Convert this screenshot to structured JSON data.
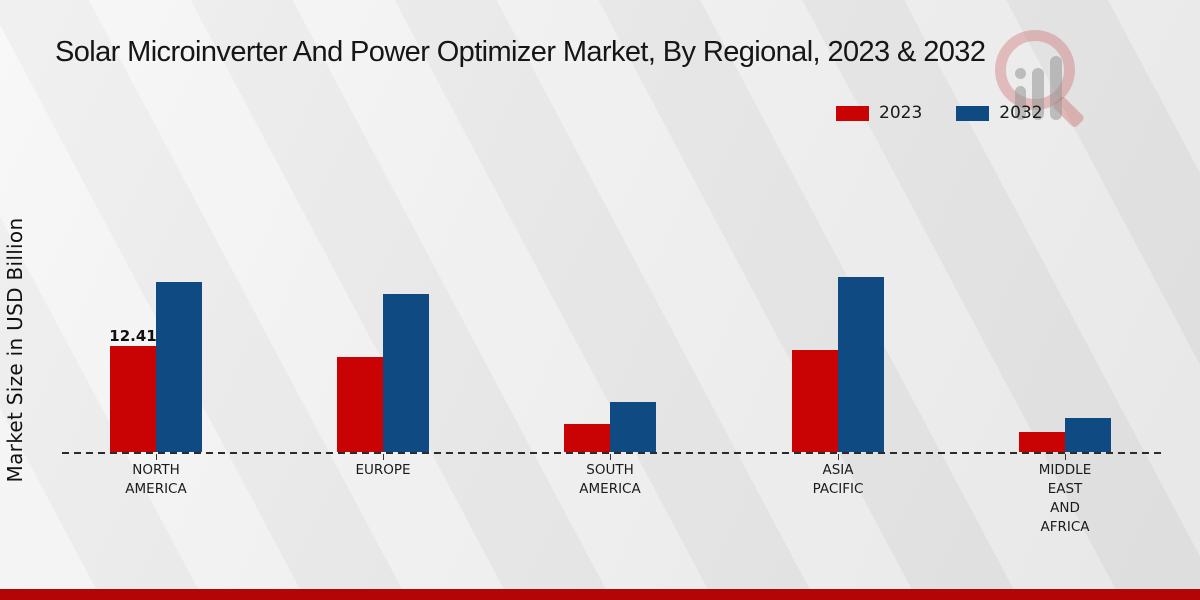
{
  "page": {
    "watermark_icon": "magnifier-bar-chart-logo",
    "footer_color": "#b30505"
  },
  "chart_data": {
    "type": "bar",
    "title": "Solar Microinverter And Power Optimizer Market, By Regional, 2023 & 2032",
    "xlabel": "",
    "ylabel": "Market Size in USD Billion",
    "categories": [
      "NORTH AMERICA",
      "EUROPE",
      "SOUTH AMERICA",
      "ASIA PACIFIC",
      "MIDDLE EAST AND AFRICA"
    ],
    "category_lines": [
      [
        "NORTH",
        "AMERICA"
      ],
      [
        "EUROPE"
      ],
      [
        "SOUTH",
        "AMERICA"
      ],
      [
        "ASIA",
        "PACIFIC"
      ],
      [
        "MIDDLE",
        "EAST",
        "AND",
        "AFRICA"
      ]
    ],
    "series": [
      {
        "name": "2023",
        "color": "#c90303",
        "values": [
          12.41,
          11.1,
          3.3,
          11.9,
          2.3
        ]
      },
      {
        "name": "2032",
        "color": "#0f4a82",
        "values": [
          19.9,
          18.5,
          5.85,
          20.5,
          4.0
        ]
      }
    ],
    "data_labels": [
      {
        "series": "2023",
        "category": "NORTH AMERICA",
        "text": "12.41"
      }
    ],
    "ylim": [
      0,
      21
    ],
    "grid": false,
    "baseline_style": "dashed",
    "legend_position": "top-right"
  }
}
